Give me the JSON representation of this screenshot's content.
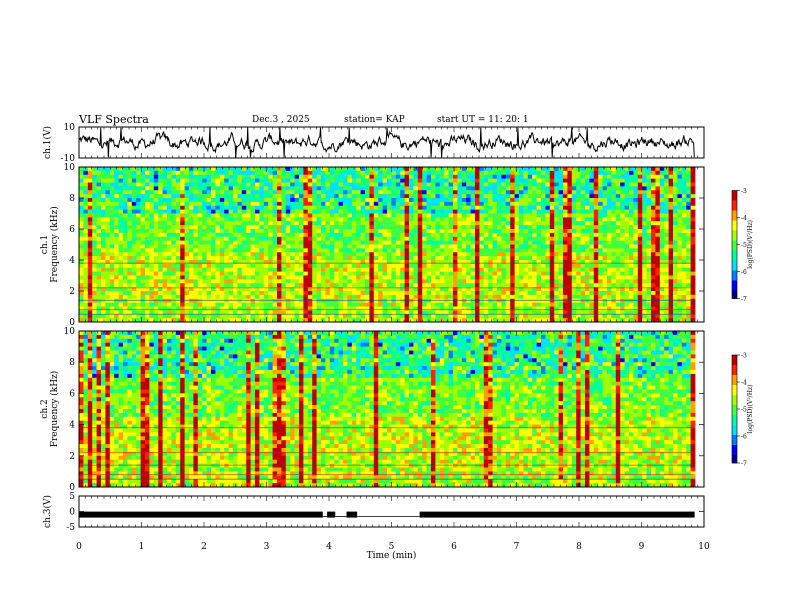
{
  "header": {
    "title": "VLF Spectra",
    "date": "Dec.3 , 2025",
    "station": "station= KAP",
    "start": "start UT = 11: 20: 1"
  },
  "colors": {
    "colormap": [
      "#00008f",
      "#0000ff",
      "#0080ff",
      "#00e0ff",
      "#00ff9f",
      "#40ff40",
      "#9fff00",
      "#ffff00",
      "#ff9f00",
      "#ff2000",
      "#c00000"
    ]
  },
  "chart_data": [
    {
      "type": "line",
      "name": "ch1-waveform",
      "ylabel": "ch.1(V)",
      "ylim": [
        -10,
        10
      ],
      "yticks": [
        "10",
        "-10"
      ],
      "x_range_min": [
        0,
        9.85
      ],
      "description_values": "noisy waveform oscillating roughly between -4 and 5 V"
    },
    {
      "type": "heatmap",
      "name": "ch1-spectrogram",
      "ylabel_top": "ch.1",
      "ylabel": "Frequency (kHz)",
      "ylim": [
        0,
        10
      ],
      "yticks": [
        "0",
        "2",
        "4",
        "6",
        "8",
        "10"
      ],
      "x_range_min": [
        0,
        9.85
      ],
      "colorbar": {
        "label": "log(PSD)(V²/Hz)",
        "range": [
          -7,
          -3
        ],
        "ticks": [
          "-3",
          "-4",
          "-5",
          "-6",
          "-7"
        ]
      }
    },
    {
      "type": "heatmap",
      "name": "ch2-spectrogram",
      "ylabel_top": "ch.2",
      "ylabel": "Frequency (kHz)",
      "ylim": [
        0,
        10
      ],
      "yticks": [
        "0",
        "2",
        "4",
        "6",
        "8",
        "10"
      ],
      "x_range_min": [
        0,
        9.85
      ],
      "colorbar": {
        "label": "log(PSD)(V²/Hz)",
        "range": [
          -7,
          -3
        ],
        "ticks": [
          "-3",
          "-4",
          "-5",
          "-6",
          "-7"
        ]
      }
    },
    {
      "type": "line",
      "name": "ch3-trace",
      "ylabel": "ch.3(V)",
      "ylim": [
        -5,
        5
      ],
      "yticks": [
        "5",
        "0",
        "-5"
      ],
      "level": -1,
      "x_range_min": [
        0,
        9.85
      ],
      "gaps_min": [
        [
          3.9,
          3.97
        ],
        [
          4.1,
          4.28
        ],
        [
          4.45,
          5.45
        ]
      ]
    }
  ],
  "xaxis": {
    "label": "Time (min)",
    "range": [
      0,
      10
    ],
    "ticks": [
      "0",
      "1",
      "2",
      "3",
      "4",
      "5",
      "6",
      "7",
      "8",
      "9",
      "10"
    ]
  }
}
